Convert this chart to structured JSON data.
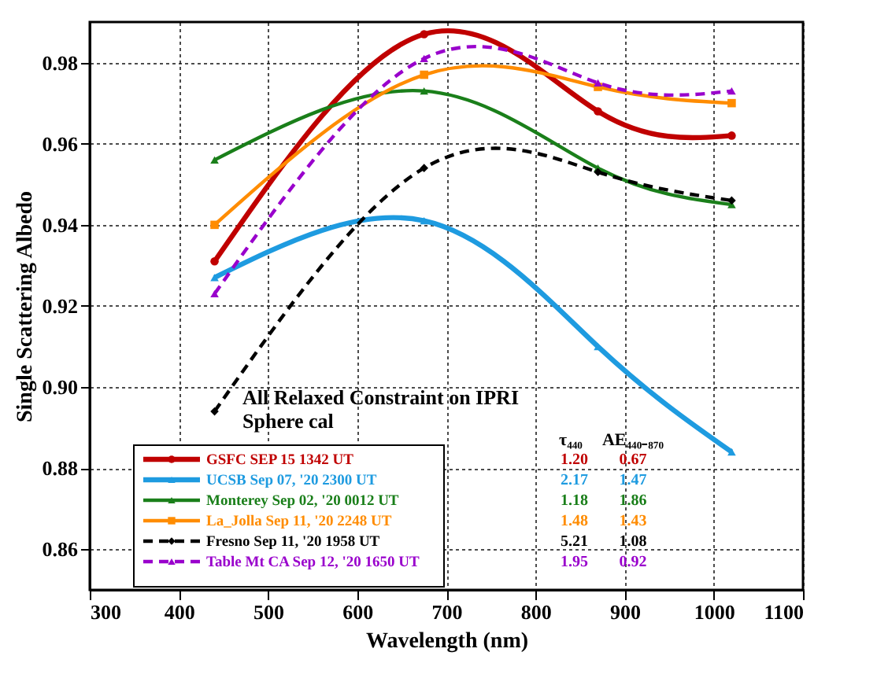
{
  "chart_data": {
    "type": "line",
    "xlabel": "Wavelength (nm)",
    "ylabel": "Single Scattering Albedo",
    "x": [
      440,
      675,
      870,
      1020
    ],
    "series": [
      {
        "name": "GSFC SEP 15 1342 UT",
        "color": "#c00000",
        "values": [
          0.931,
          0.987,
          0.968,
          0.962
        ],
        "marker": "circle",
        "line_style": "solid"
      },
      {
        "name": "UCSB Sep 07, '20 2300 UT",
        "color": "#1e9be0",
        "values": [
          0.927,
          0.941,
          0.91,
          0.884
        ],
        "marker": "triangle",
        "line_style": "solid"
      },
      {
        "name": "Monterey Sep 02, '20 0012 UT",
        "color": "#1a7f1a",
        "values": [
          0.956,
          0.973,
          0.954,
          0.945
        ],
        "marker": "triangle",
        "line_style": "solid"
      },
      {
        "name": "La_Jolla Sep 11, '20 2248 UT",
        "color": "#ff8c00",
        "values": [
          0.94,
          0.977,
          0.974,
          0.97
        ],
        "marker": "square",
        "line_style": "solid"
      },
      {
        "name": "Fresno Sep 11, '20 1958 UT",
        "color": "#000000",
        "values": [
          0.894,
          0.954,
          0.953,
          0.946
        ],
        "marker": "diamond",
        "line_style": "dashed"
      },
      {
        "name": "Table Mt CA Sep 12, '20 1650 UT",
        "color": "#9900cc",
        "values": [
          0.923,
          0.981,
          0.975,
          0.973
        ],
        "marker": "triangle",
        "line_style": "dashed"
      }
    ],
    "xlim": [
      300,
      1100
    ],
    "xticks": [
      300,
      400,
      500,
      600,
      700,
      800,
      900,
      1000,
      1100
    ],
    "ylim": [
      0.85,
      0.99
    ],
    "yticks": [
      0.86,
      0.88,
      {
        "value": 0.9,
        "label": "0.90"
      },
      0.92,
      0.94,
      0.96,
      0.98
    ],
    "grid": true,
    "legend": "bottom",
    "annotations": [
      "All Relaxed Constraint on IPRI Sphere cal",
      "τ₄₄₀",
      "AE₄₄₀₋₈₇₀",
      "1.20",
      "0.67",
      "2.17",
      "1.47",
      "1.18",
      "1.86",
      "1.48",
      "1.43",
      "5.21",
      "1.08",
      "1.95",
      "0.92"
    ]
  }
}
